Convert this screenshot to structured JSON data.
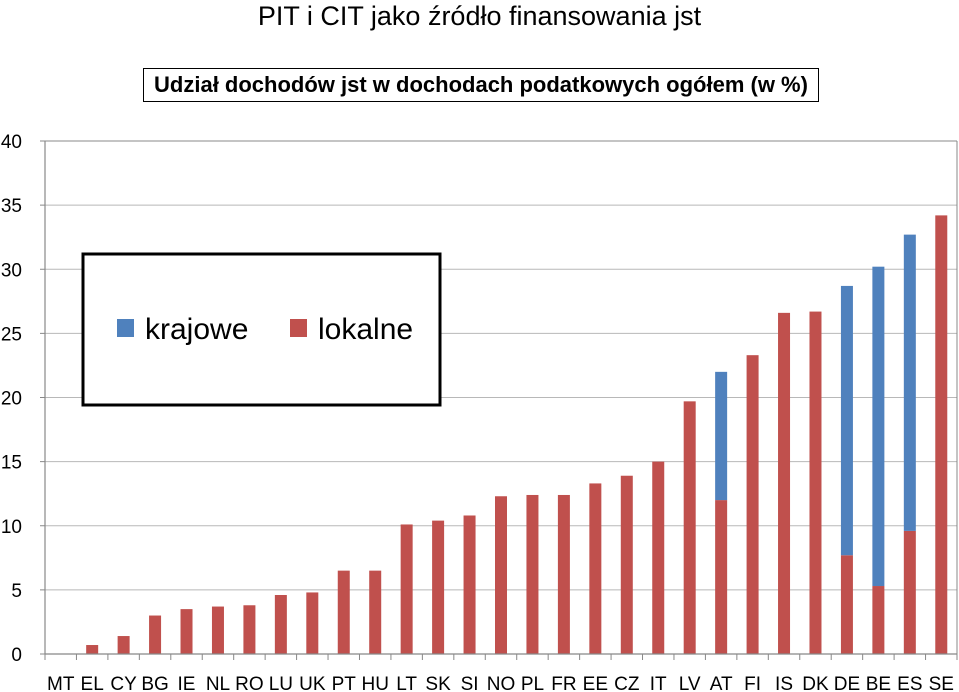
{
  "title": "PIT i CIT jako źródło finansowania jst",
  "subtitle": "Udział dochodów jst w dochodach podatkowych ogółem (w %)",
  "chart_data": {
    "type": "bar",
    "stacked": true,
    "categories": [
      "MT",
      "EL",
      "CY",
      "BG",
      "IE",
      "NL",
      "RO",
      "LU",
      "UK",
      "PT",
      "HU",
      "LT",
      "SK",
      "SI",
      "NO",
      "PL",
      "FR",
      "EE",
      "CZ",
      "IT",
      "LV",
      "AT",
      "FI",
      "IS",
      "DK",
      "DE",
      "BE",
      "ES",
      "SE"
    ],
    "series": [
      {
        "name": "lokalne",
        "color": "#C0504D",
        "values": [
          0,
          0.7,
          1.4,
          3.0,
          3.5,
          3.7,
          3.8,
          4.6,
          4.8,
          6.5,
          6.5,
          10.1,
          10.4,
          10.8,
          12.3,
          12.4,
          12.4,
          13.3,
          13.9,
          15.0,
          19.7,
          12.0,
          23.3,
          26.6,
          26.7,
          7.7,
          5.3,
          9.6,
          34.2
        ]
      },
      {
        "name": "krajowe",
        "color": "#4F81BD",
        "values": [
          0,
          0,
          0,
          0,
          0,
          0,
          0,
          0,
          0,
          0,
          0,
          0,
          0,
          0,
          0,
          0,
          0,
          0,
          0,
          0,
          0,
          10.0,
          0,
          0,
          0,
          21.0,
          24.9,
          23.1,
          0
        ]
      }
    ],
    "yticks": [
      "0",
      "5",
      "10",
      "15",
      "20",
      "25",
      "30",
      "35",
      "40"
    ],
    "ylim": [
      0,
      40
    ],
    "grid": true,
    "legend": {
      "placement": "upper-left",
      "entries": [
        "krajowe",
        "lokalne"
      ]
    }
  }
}
